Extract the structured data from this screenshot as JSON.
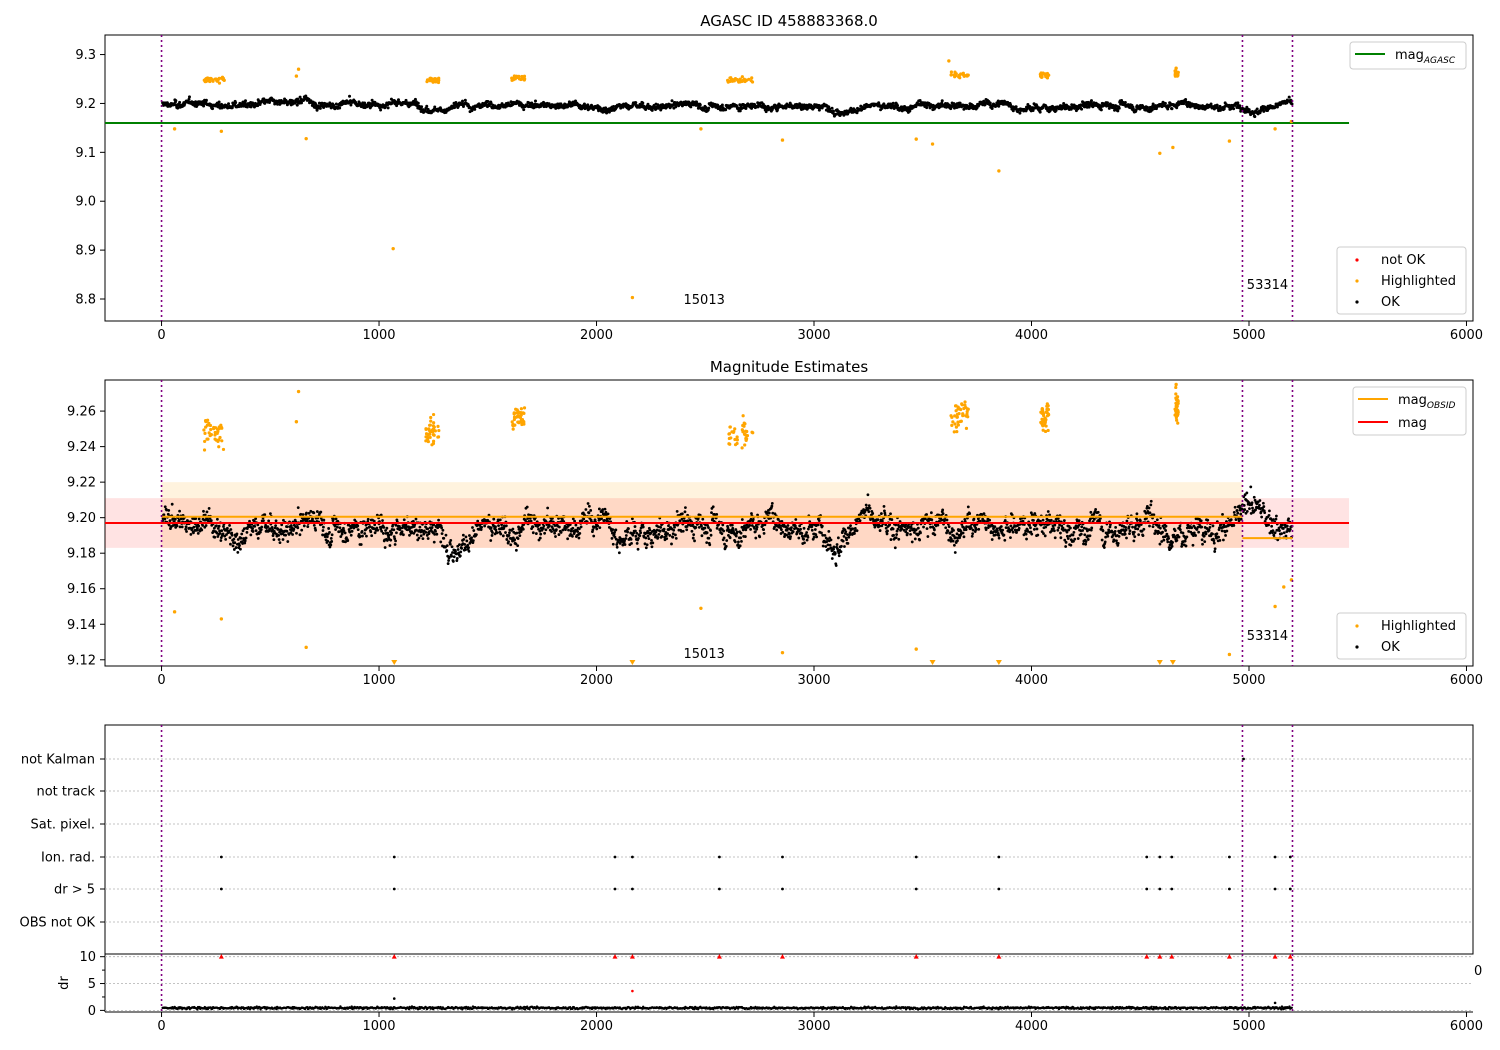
{
  "chart_data": [
    {
      "type": "scatter",
      "title": "AGASC ID 458883368.0",
      "xlabel": "",
      "ylabel": "",
      "xlim": [
        -260,
        6030
      ],
      "ylim": [
        8.755,
        9.34
      ],
      "xticks": [
        0,
        1000,
        2000,
        3000,
        4000,
        5000,
        6000
      ],
      "yticks": [
        8.8,
        8.9,
        9.0,
        9.1,
        9.2,
        9.3
      ],
      "ytick_labels": [
        "8.8",
        "8.9",
        "9.0",
        "9.1",
        "9.2",
        "9.3"
      ],
      "vlines": [
        0,
        4970,
        5200
      ],
      "annotations": [
        {
          "text": "15013",
          "x": 2400,
          "y": 8.79
        },
        {
          "text": "53314",
          "x": 4990,
          "y": 8.82
        }
      ],
      "hline": {
        "name": "mag_AGASC",
        "label_main": "mag",
        "label_sub": "AGASC",
        "y": 9.16,
        "x_range": [
          -260,
          5460
        ],
        "color": "#008000"
      },
      "series": [
        {
          "name": "not OK",
          "color": "#ff0000",
          "points": []
        },
        {
          "name": "Highlighted",
          "color": "#ffa500",
          "points": [
            [
              60,
              9.148
            ],
            [
              275,
              9.143
            ],
            [
              665,
              9.128
            ],
            [
              1065,
              8.903
            ],
            [
              2165,
              8.803
            ],
            [
              2480,
              9.148
            ],
            [
              2855,
              9.125
            ],
            [
              3470,
              9.127
            ],
            [
              3545,
              9.117
            ],
            [
              3850,
              9.062
            ],
            [
              4590,
              9.098
            ],
            [
              4650,
              9.11
            ],
            [
              4910,
              9.123
            ],
            [
              5120,
              9.148
            ],
            [
              5195,
              9.163
            ],
            [
              630,
              9.27
            ],
            [
              620,
              9.256
            ],
            [
              4665,
              9.272
            ],
            [
              3620,
              9.287
            ]
          ]
        },
        {
          "name": "OK",
          "color": "#000000",
          "points": []
        }
      ],
      "highlight_clusters": [
        [
          190,
          290,
          9.248
        ],
        [
          1215,
          1275,
          9.248
        ],
        [
          1610,
          1670,
          9.252
        ],
        [
          2600,
          2720,
          9.248
        ],
        [
          3630,
          3710,
          9.258
        ],
        [
          4040,
          4080,
          9.257
        ],
        [
          4660,
          4675,
          9.262
        ]
      ],
      "legend_position": "lower right"
    },
    {
      "type": "scatter",
      "title": "Magnitude Estimates",
      "xlabel": "",
      "ylabel": "",
      "xlim": [
        -260,
        6030
      ],
      "ylim": [
        9.1165,
        9.2775
      ],
      "xticks": [
        0,
        1000,
        2000,
        3000,
        4000,
        5000,
        6000
      ],
      "yticks": [
        9.12,
        9.14,
        9.16,
        9.18,
        9.2,
        9.22,
        9.24,
        9.26
      ],
      "ytick_labels": [
        "9.12",
        "9.14",
        "9.16",
        "9.18",
        "9.20",
        "9.22",
        "9.24",
        "9.26"
      ],
      "vlines": [
        0,
        4970,
        5200
      ],
      "annotations": [
        {
          "text": "15013",
          "x": 2400,
          "y": 9.121
        },
        {
          "text": "53314",
          "x": 4990,
          "y": 9.131
        }
      ],
      "lines": [
        {
          "name": "mag_OBSID",
          "label_main": "mag",
          "label_sub": "OBSID",
          "color": "#ffa500",
          "segments": [
            [
              0,
              4970,
              9.2005
            ],
            [
              4970,
              5200,
              9.1885
            ]
          ]
        },
        {
          "name": "mag",
          "label_main": "mag",
          "label_sub": "",
          "color": "#ff0000",
          "segments": [
            [
              -260,
              5460,
              9.197
            ]
          ]
        }
      ],
      "bands": [
        {
          "color": "#ffa500",
          "opacity": 0.13,
          "x_range": [
            0,
            4970
          ],
          "y_range": [
            9.183,
            9.22
          ]
        },
        {
          "color": "#ff0000",
          "opacity": 0.11,
          "x_range": [
            -260,
            5460
          ],
          "y_range": [
            9.183,
            9.211
          ]
        }
      ],
      "series": [
        {
          "name": "Highlighted",
          "color": "#ffa500",
          "points": [
            [
              60,
              9.147
            ],
            [
              275,
              9.143
            ],
            [
              665,
              9.127
            ],
            [
              2480,
              9.149
            ],
            [
              2855,
              9.124
            ],
            [
              3470,
              9.126
            ],
            [
              4910,
              9.123
            ],
            [
              5120,
              9.15
            ],
            [
              5160,
              9.161
            ],
            [
              5195,
              9.165
            ],
            [
              630,
              9.271
            ],
            [
              620,
              9.254
            ],
            [
              4665,
              9.275
            ]
          ]
        },
        {
          "name": "OK",
          "color": "#000000",
          "points": []
        }
      ],
      "highlight_clusters": [
        [
          190,
          290,
          9.248
        ],
        [
          1215,
          1275,
          9.248
        ],
        [
          1610,
          1670,
          9.256
        ],
        [
          2600,
          2720,
          9.248
        ],
        [
          3630,
          3710,
          9.258
        ],
        [
          4040,
          4080,
          9.257
        ],
        [
          4660,
          4675,
          9.262
        ]
      ],
      "off_scale_markers": [
        1070,
        2165,
        3545,
        3850,
        4590,
        4650
      ],
      "legend_position": "lower right"
    },
    {
      "type": "scatter",
      "title": "",
      "xlabel": "",
      "ylabel": "",
      "xlim": [
        -260,
        6030
      ],
      "categories": [
        "not Kalman",
        "not track",
        "Sat. pixel.",
        "Ion. rad.",
        "dr > 5",
        "OBS not OK"
      ],
      "vlines": [
        0,
        4970,
        5200
      ],
      "flag_points": {
        "not Kalman": [
          4975
        ],
        "Ion. rad.": [
          275,
          1070,
          2085,
          2165,
          2565,
          2855,
          3470,
          3850,
          4530,
          4590,
          4645,
          4910,
          5120,
          5190
        ],
        "dr > 5": [
          275,
          1070,
          2085,
          2165,
          2565,
          2855,
          3470,
          3850,
          4530,
          4590,
          4645,
          4910,
          5120,
          5190
        ]
      }
    },
    {
      "type": "scatter",
      "title": "",
      "xlabel": "",
      "ylabel": "dr",
      "xlim": [
        -260,
        6030
      ],
      "ylim": [
        -0.3,
        10.5
      ],
      "xticks": [
        0,
        1000,
        2000,
        3000,
        4000,
        5000,
        6000
      ],
      "yticks": [
        0,
        5,
        10
      ],
      "ytick_labels": [
        "0",
        "5",
        "10"
      ],
      "vlines": [
        0,
        4970,
        5200
      ],
      "clipped_markers": [
        275,
        1070,
        2085,
        2165,
        2565,
        2855,
        3470,
        3850,
        4530,
        4590,
        4645,
        4910,
        5120,
        5190
      ],
      "outliers": [
        [
          1070,
          2.2
        ],
        [
          2165,
          3.6
        ]
      ],
      "edge_label": "0"
    }
  ]
}
